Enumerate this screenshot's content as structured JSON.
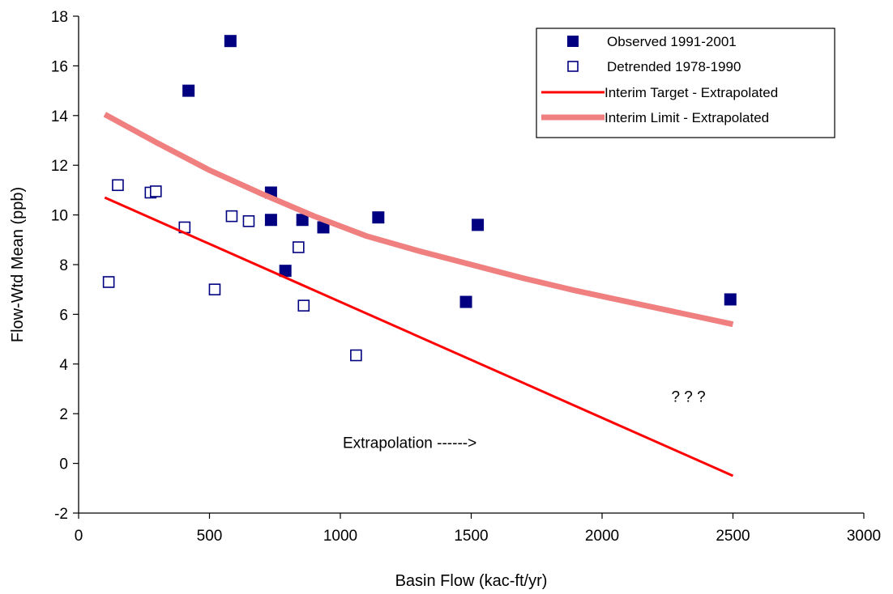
{
  "chart_data": {
    "type": "scatter",
    "xlabel": "Basin Flow (kac-ft/yr)",
    "ylabel": "Flow-Wtd Mean (ppb)",
    "xlim": [
      0,
      3000
    ],
    "ylim": [
      -2,
      18
    ],
    "x_ticks": [
      "0",
      "500",
      "1000",
      "1500",
      "2000",
      "2500",
      "3000"
    ],
    "y_ticks": [
      "-2",
      "0",
      "2",
      "4",
      "6",
      "8",
      "10",
      "12",
      "14",
      "16",
      "18"
    ],
    "grid": false,
    "legend_position": "top-right",
    "series": [
      {
        "name": "Observed 1991-2001",
        "kind": "scatter",
        "marker": "filled-square",
        "color": "#000080",
        "x": [
          420,
          580,
          735,
          735,
          790,
          855,
          935,
          1145,
          1480,
          1525,
          2490
        ],
        "y": [
          15.0,
          17.0,
          10.9,
          9.8,
          7.75,
          9.8,
          9.5,
          9.9,
          6.5,
          9.6,
          6.6
        ]
      },
      {
        "name": "Detrended 1978-1990",
        "kind": "scatter",
        "marker": "open-square",
        "color": "#000080",
        "x": [
          115,
          150,
          275,
          295,
          405,
          520,
          585,
          650,
          840,
          860,
          1060
        ],
        "y": [
          7.3,
          11.2,
          10.9,
          10.95,
          9.5,
          7.0,
          9.95,
          9.75,
          8.7,
          6.35,
          4.35
        ]
      },
      {
        "name": "Interim Target - Extrapolated",
        "kind": "line",
        "color": "#ff0000",
        "x": [
          100,
          2500
        ],
        "y": [
          10.7,
          -0.5
        ]
      },
      {
        "name": "Interim Limit - Extrapolated",
        "kind": "line",
        "color": "#f08080",
        "x": [
          100,
          300,
          500,
          700,
          900,
          1100,
          1300,
          1500,
          1700,
          1900,
          2100,
          2300,
          2500
        ],
        "y": [
          14.05,
          12.9,
          11.8,
          10.85,
          9.95,
          9.15,
          8.55,
          8.0,
          7.45,
          6.95,
          6.5,
          6.05,
          5.6
        ]
      }
    ],
    "annotations": [
      {
        "text": "Extrapolation ------>",
        "x": 1265,
        "y": 0.85
      },
      {
        "text": "?  ?  ?",
        "x": 2330,
        "y": 2.7
      }
    ]
  }
}
